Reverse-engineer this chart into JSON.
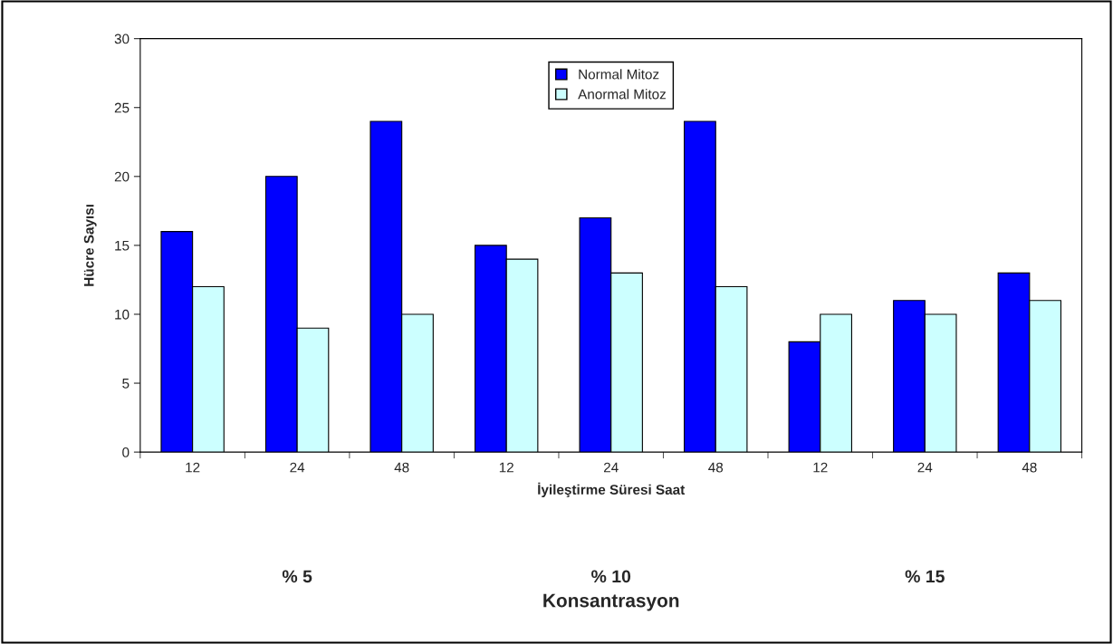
{
  "chart_data": {
    "type": "bar",
    "xlabel": "İyileştirme Süresi Saat",
    "ylabel": "Hücre Sayısı",
    "categories": [
      "12",
      "24",
      "48",
      "12",
      "24",
      "48",
      "12",
      "24",
      "48"
    ],
    "series": [
      {
        "name": "Normal Mitoz",
        "color": "#0000ff",
        "values": [
          16,
          20,
          24,
          15,
          17,
          24,
          8,
          11,
          13
        ]
      },
      {
        "name": "Anormal Mitoz",
        "color": "#ccffff",
        "values": [
          12,
          9,
          10,
          14,
          13,
          12,
          10,
          10,
          11
        ]
      }
    ],
    "ylim": [
      0,
      30
    ],
    "yticks": [
      0,
      5,
      10,
      15,
      20,
      25,
      30
    ],
    "grid": false,
    "legend": "top",
    "annotations": [
      "% 5",
      "% 10",
      "% 15",
      "Konsantrasyon"
    ]
  }
}
